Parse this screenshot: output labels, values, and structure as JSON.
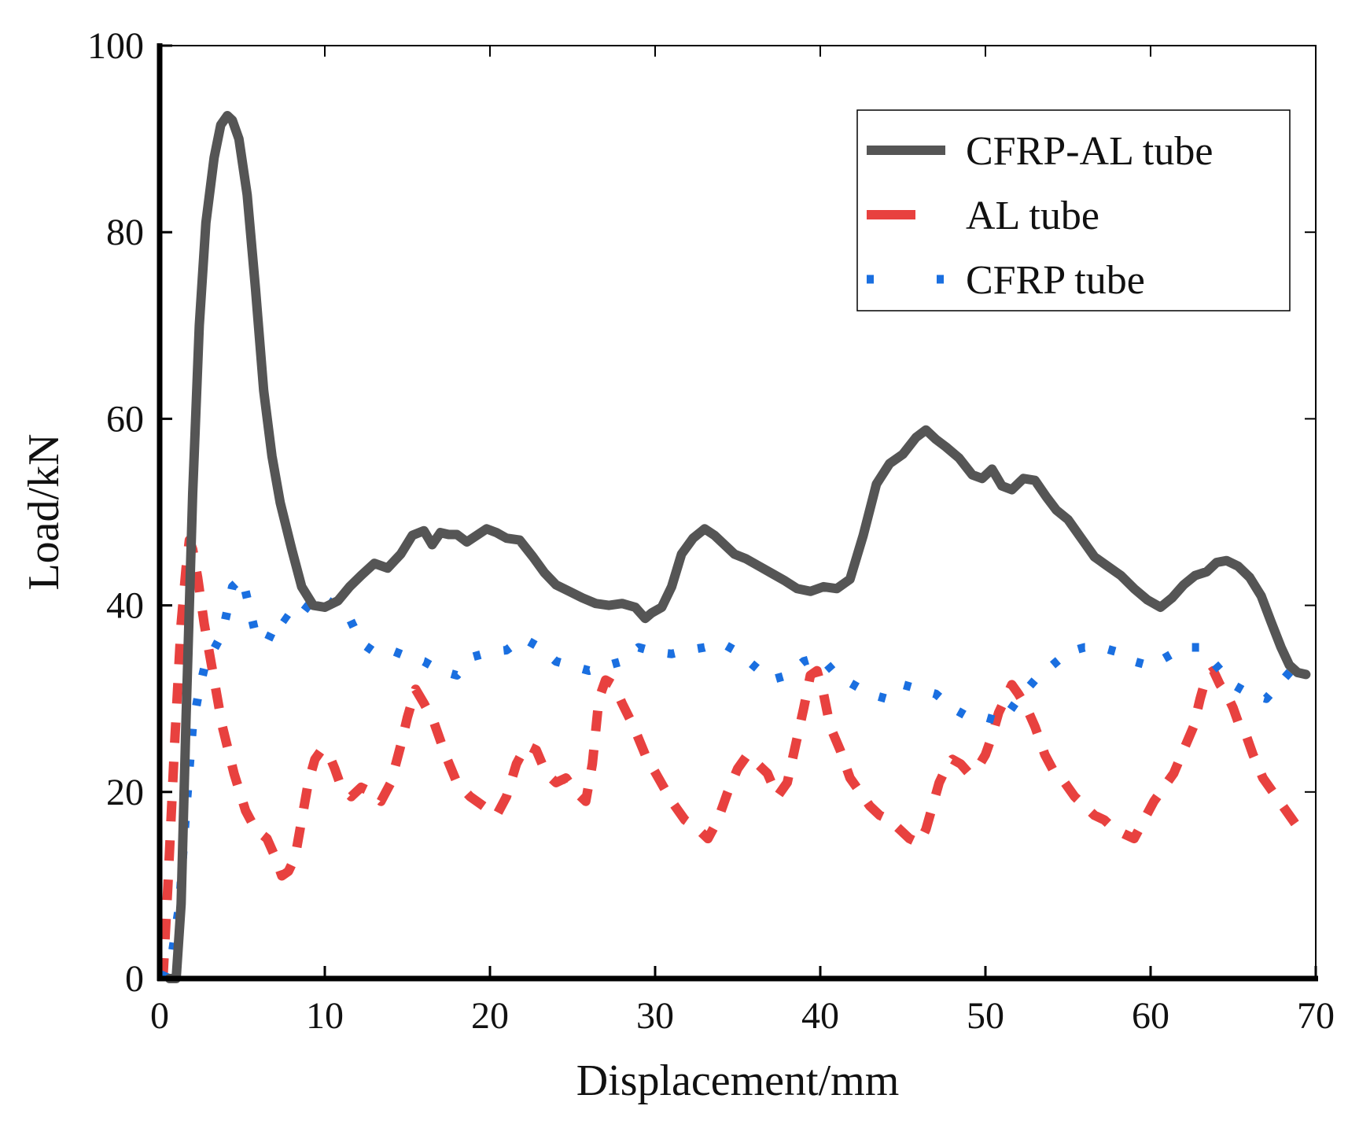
{
  "chart_data": {
    "type": "line",
    "title": "",
    "xlabel": "Displacement/mm",
    "ylabel": "Load/kN",
    "xlim": [
      0,
      70
    ],
    "ylim": [
      0,
      100
    ],
    "xticks": [
      "0",
      "10",
      "20",
      "30",
      "40",
      "50",
      "60",
      "70"
    ],
    "yticks": [
      "0",
      "20",
      "40",
      "60",
      "80",
      "100"
    ],
    "legend_position": "top-right",
    "series": [
      {
        "name": "CFRP-AL tube",
        "style": "solid",
        "color": "#555555",
        "x": [
          0.6,
          1.0,
          1.3,
          1.6,
          2.0,
          2.4,
          2.8,
          3.3,
          3.7,
          4.1,
          4.4,
          4.8,
          5.3,
          5.8,
          6.3,
          6.8,
          7.3,
          8.0,
          8.6,
          9.3,
          10.0,
          10.8,
          11.5,
          12.2,
          13.0,
          13.8,
          14.6,
          15.3,
          16.0,
          16.5,
          17.0,
          17.5,
          18.0,
          18.6,
          19.2,
          19.8,
          20.4,
          21.0,
          21.8,
          22.6,
          23.3,
          24.0,
          24.8,
          25.6,
          26.4,
          27.2,
          28.0,
          28.8,
          29.4,
          29.8,
          30.4,
          31.0,
          31.6,
          32.3,
          33.0,
          33.6,
          34.2,
          34.8,
          35.5,
          36.3,
          37.0,
          37.8,
          38.6,
          39.4,
          40.2,
          41.0,
          41.8,
          42.6,
          43.4,
          44.2,
          45.0,
          45.8,
          46.4,
          47.0,
          47.6,
          48.4,
          49.2,
          49.8,
          50.4,
          51.0,
          51.6,
          52.3,
          53.0,
          53.7,
          54.3,
          55.0,
          55.8,
          56.6,
          57.4,
          58.2,
          59.0,
          59.8,
          60.6,
          61.3,
          62.0,
          62.7,
          63.4,
          64.0,
          64.6,
          65.3,
          66.0,
          66.7,
          67.3,
          67.9,
          68.4,
          68.9,
          69.4
        ],
        "y": [
          0,
          0,
          8,
          28,
          52,
          70,
          81,
          88,
          91.5,
          92.5,
          92,
          90,
          84,
          74,
          63,
          56,
          51,
          46,
          42,
          40,
          39.8,
          40.5,
          42,
          43.2,
          44.5,
          44,
          45.5,
          47.5,
          48,
          46.5,
          47.8,
          47.6,
          47.6,
          46.8,
          47.5,
          48.2,
          47.8,
          47.2,
          47.0,
          45.2,
          43.5,
          42.2,
          41.5,
          40.8,
          40.2,
          40.0,
          40.2,
          39.8,
          38.6,
          39.2,
          39.8,
          42.0,
          45.5,
          47.2,
          48.2,
          47.5,
          46.5,
          45.5,
          45.0,
          44.2,
          43.5,
          42.7,
          41.8,
          41.5,
          42.0,
          41.8,
          42.8,
          47.5,
          53.0,
          55.2,
          56.2,
          58.0,
          58.8,
          57.8,
          57.0,
          55.8,
          54.0,
          53.6,
          54.6,
          52.8,
          52.4,
          53.6,
          53.4,
          51.6,
          50.2,
          49.2,
          47.2,
          45.2,
          44.2,
          43.2,
          41.8,
          40.6,
          39.8,
          40.8,
          42.2,
          43.2,
          43.6,
          44.6,
          44.8,
          44.2,
          43.0,
          41.0,
          38.2,
          35.5,
          33.6,
          32.8,
          32.6
        ]
      },
      {
        "name": "AL tube",
        "style": "dashed",
        "color": "#e8413f",
        "x": [
          0.2,
          0.5,
          0.9,
          1.3,
          1.6,
          1.8,
          2.0,
          2.3,
          2.7,
          3.2,
          3.8,
          4.5,
          5.2,
          5.8,
          6.5,
          7.0,
          7.4,
          7.8,
          8.2,
          8.6,
          9.0,
          9.4,
          9.8,
          10.2,
          10.6,
          11.0,
          11.6,
          12.2,
          12.8,
          13.4,
          14.0,
          14.6,
          15.0,
          15.5,
          16.0,
          16.6,
          17.3,
          18.0,
          18.8,
          19.6,
          20.4,
          21.0,
          21.6,
          22.2,
          22.8,
          23.4,
          24.0,
          24.6,
          25.2,
          25.8,
          26.2,
          26.6,
          27.0,
          27.5,
          28.0,
          28.7,
          29.4,
          30.2,
          31.0,
          31.8,
          32.6,
          33.2,
          33.8,
          34.4,
          35.0,
          35.6,
          36.2,
          36.8,
          37.4,
          38.0,
          38.5,
          39.0,
          39.4,
          39.8,
          40.2,
          40.6,
          41.2,
          41.8,
          42.4,
          43.0,
          43.6,
          44.2,
          44.8,
          45.4,
          46.0,
          46.4,
          46.8,
          47.2,
          47.6,
          48.0,
          48.5,
          49.0,
          49.5,
          50.0,
          50.4,
          50.8,
          51.2,
          51.6,
          52.0,
          52.5,
          53.0,
          53.6,
          54.2,
          54.8,
          55.4,
          56.0,
          56.6,
          57.2,
          57.8,
          58.4,
          59.0,
          59.6,
          60.2,
          60.8,
          61.4,
          62.0,
          62.6,
          63.0,
          63.4,
          63.8,
          64.2,
          64.6,
          65.0,
          65.4,
          65.8,
          66.2,
          66.8,
          67.4,
          68.0,
          68.6,
          69.2
        ],
        "y": [
          0,
          10,
          25,
          38,
          44,
          47,
          46,
          43,
          38,
          33,
          27,
          22,
          18,
          16,
          15,
          13,
          11,
          11.5,
          13,
          17,
          21,
          23.5,
          24.5,
          24.2,
          22.5,
          20.5,
          19.5,
          20.5,
          20.0,
          19.0,
          21.0,
          25.0,
          28.0,
          31.0,
          29.5,
          27.5,
          24.0,
          21.0,
          19.5,
          18.5,
          17.5,
          19.5,
          23.0,
          25.0,
          24.5,
          22.0,
          21.0,
          21.5,
          20.0,
          19.0,
          23.0,
          30.0,
          32.0,
          31.5,
          29.5,
          27.0,
          24.0,
          21.5,
          19.0,
          17.0,
          16.0,
          15.0,
          17.0,
          20.0,
          22.5,
          24.0,
          23.0,
          22.0,
          19.5,
          21.0,
          25.0,
          29.0,
          32.5,
          33.0,
          30.5,
          27.0,
          24.5,
          21.5,
          20.0,
          18.5,
          17.5,
          17.0,
          16.0,
          15.0,
          14.5,
          16.0,
          18.5,
          21.0,
          22.5,
          23.5,
          23.0,
          22.0,
          22.5,
          24.0,
          26.0,
          28.5,
          30.0,
          31.5,
          30.5,
          29.0,
          27.0,
          24.0,
          22.0,
          21.0,
          19.5,
          18.5,
          17.5,
          17.0,
          16.0,
          15.5,
          15.0,
          17.0,
          19.0,
          20.5,
          22.0,
          24.5,
          27.0,
          30.0,
          32.5,
          33.0,
          31.5,
          30.5,
          29.0,
          27.0,
          26.0,
          24.0,
          21.5,
          20.0,
          18.5,
          17.0,
          15.5
        ]
      },
      {
        "name": "CFRP tube",
        "style": "dotted",
        "color": "#1a6fe0",
        "x": [
          0.2,
          0.7,
          1.2,
          1.6,
          2.0,
          2.4,
          2.8,
          3.2,
          3.8,
          4.4,
          5.0,
          5.8,
          6.5,
          7.3,
          8.1,
          9.0,
          9.8,
          10.6,
          11.4,
          12.2,
          13.0,
          14.0,
          15.0,
          16.0,
          17.0,
          18.0,
          19.0,
          20.0,
          21.0,
          22.0,
          23.0,
          24.0,
          25.0,
          26.0,
          27.0,
          28.0,
          29.0,
          30.0,
          31.0,
          32.0,
          33.0,
          34.0,
          35.0,
          36.0,
          37.0,
          38.0,
          39.0,
          40.0,
          41.0,
          42.0,
          43.0,
          44.0,
          45.0,
          46.0,
          47.0,
          48.0,
          49.0,
          50.0,
          51.0,
          52.0,
          53.0,
          54.0,
          55.0,
          56.0,
          57.0,
          58.0,
          59.0,
          60.0,
          61.0,
          62.0,
          63.0,
          64.0,
          65.0,
          66.0,
          67.0,
          68.0,
          69.0
        ],
        "y": [
          0,
          2,
          8,
          18,
          27,
          31,
          34,
          35,
          37,
          42,
          43,
          37,
          36,
          39,
          38,
          40,
          41,
          40,
          39,
          36,
          35,
          35.2,
          34.5,
          34.0,
          33.0,
          32.5,
          34.5,
          35.0,
          35.2,
          36.5,
          35.5,
          34.0,
          33.5,
          33.0,
          33.5,
          34.0,
          35.5,
          35.0,
          34.8,
          35.2,
          35.5,
          36.0,
          35.0,
          33.5,
          32.0,
          32.5,
          34.0,
          34.5,
          32.5,
          31.5,
          30.5,
          30.0,
          31.5,
          31.0,
          30.5,
          29.0,
          28.0,
          28.0,
          27.5,
          30.0,
          32.0,
          33.5,
          35.0,
          35.5,
          35.5,
          35.0,
          34.0,
          33.5,
          34.5,
          35.5,
          35.5,
          33.5,
          31.5,
          30.5,
          30.0,
          32.0,
          34.0
        ]
      }
    ]
  }
}
